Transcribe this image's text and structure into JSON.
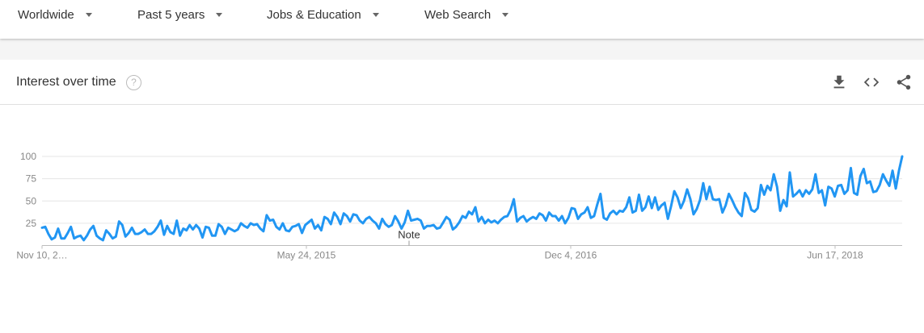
{
  "filters": {
    "region": "Worldwide",
    "time_range": "Past 5 years",
    "category": "Jobs & Education",
    "search_type": "Web Search"
  },
  "card": {
    "title": "Interest over time",
    "help_glyph": "?"
  },
  "icons": {
    "download": "download-icon",
    "embed": "embed-code-icon",
    "share": "share-icon",
    "help": "help-icon"
  },
  "colors": {
    "line": "#2196f3",
    "grid": "#e6e6e6"
  },
  "chart_data": {
    "type": "line",
    "title": "Interest over time",
    "xlabel": "",
    "ylabel": "",
    "ylim": [
      0,
      100
    ],
    "yticks": [
      25,
      50,
      75,
      100
    ],
    "grid": true,
    "x_tick_labels": [
      "Nov 10, 2…",
      "May 24, 2015",
      "Dec 4, 2016",
      "Jun 17, 2018"
    ],
    "annotation": "Note",
    "series": [
      {
        "values": [
          20,
          21,
          13,
          7,
          9,
          19,
          8,
          8,
          14,
          21,
          8,
          10,
          11,
          6,
          11,
          18,
          22,
          11,
          8,
          6,
          17,
          13,
          8,
          10,
          27,
          23,
          10,
          14,
          20,
          13,
          13,
          15,
          18,
          13,
          13,
          16,
          21,
          28,
          12,
          22,
          15,
          13,
          28,
          11,
          19,
          17,
          23,
          18,
          23,
          19,
          9,
          21,
          20,
          11,
          11,
          24,
          21,
          13,
          20,
          18,
          16,
          18,
          25,
          22,
          20,
          25,
          23,
          24,
          19,
          16,
          34,
          28,
          29,
          21,
          18,
          25,
          17,
          16,
          21,
          22,
          24,
          14,
          23,
          26,
          29,
          19,
          23,
          17,
          32,
          30,
          24,
          37,
          32,
          24,
          36,
          33,
          27,
          35,
          34,
          28,
          25,
          30,
          32,
          28,
          25,
          19,
          30,
          24,
          21,
          23,
          33,
          27,
          19,
          26,
          39,
          28,
          29,
          30,
          28,
          19,
          22,
          22,
          23,
          19,
          20,
          26,
          32,
          29,
          18,
          21,
          26,
          33,
          31,
          38,
          35,
          43,
          27,
          32,
          25,
          29,
          26,
          28,
          25,
          29,
          32,
          33,
          40,
          52,
          27,
          31,
          33,
          27,
          30,
          32,
          30,
          36,
          34,
          28,
          37,
          33,
          33,
          28,
          33,
          25,
          31,
          42,
          41,
          30,
          35,
          37,
          43,
          31,
          33,
          46,
          58,
          31,
          29,
          36,
          39,
          35,
          39,
          38,
          43,
          54,
          37,
          39,
          57,
          39,
          43,
          55,
          42,
          54,
          40,
          45,
          48,
          30,
          44,
          61,
          54,
          42,
          50,
          63,
          52,
          35,
          41,
          51,
          70,
          52,
          66,
          52,
          51,
          52,
          37,
          45,
          58,
          51,
          43,
          37,
          33,
          59,
          53,
          40,
          38,
          42,
          68,
          57,
          67,
          62,
          80,
          66,
          39,
          51,
          44,
          82,
          55,
          58,
          62,
          55,
          62,
          58,
          63,
          80,
          59,
          62,
          45,
          66,
          64,
          55,
          67,
          68,
          58,
          62,
          87,
          59,
          57,
          78,
          86,
          70,
          72,
          60,
          61,
          68,
          80,
          73,
          67,
          84,
          64,
          84,
          100
        ]
      }
    ]
  }
}
